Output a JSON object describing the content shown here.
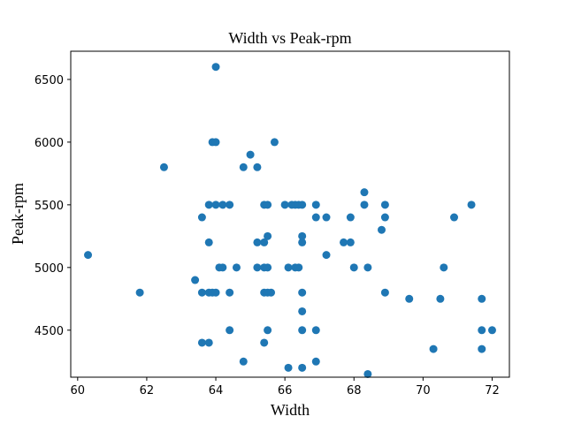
{
  "chart_data": {
    "type": "scatter",
    "title": "Width vs Peak-rpm",
    "xlabel": "Width",
    "ylabel": "Peak-rpm",
    "xlim": [
      59.8,
      72.5
    ],
    "ylim": [
      4125,
      6725
    ],
    "xticks": [
      60,
      62,
      64,
      66,
      68,
      70,
      72
    ],
    "yticks": [
      4500,
      5000,
      5500,
      6000,
      6500
    ],
    "grid": false,
    "marker_color": "#1f77b4",
    "points": [
      [
        60.3,
        5100
      ],
      [
        61.8,
        4800
      ],
      [
        62.5,
        5800
      ],
      [
        63.4,
        4900
      ],
      [
        63.6,
        5400
      ],
      [
        63.6,
        4800
      ],
      [
        63.6,
        4400
      ],
      [
        63.8,
        5500
      ],
      [
        63.8,
        5200
      ],
      [
        63.8,
        4800
      ],
      [
        63.8,
        4400
      ],
      [
        63.9,
        6000
      ],
      [
        63.9,
        4800
      ],
      [
        64.0,
        6000
      ],
      [
        64.0,
        6600
      ],
      [
        64.0,
        5500
      ],
      [
        64.0,
        4800
      ],
      [
        64.1,
        5000
      ],
      [
        64.2,
        5500
      ],
      [
        64.2,
        5000
      ],
      [
        64.4,
        5500
      ],
      [
        64.4,
        4800
      ],
      [
        64.4,
        4500
      ],
      [
        64.6,
        5000
      ],
      [
        64.8,
        5800
      ],
      [
        64.8,
        4250
      ],
      [
        65.0,
        5900
      ],
      [
        65.2,
        5800
      ],
      [
        65.2,
        5200
      ],
      [
        65.2,
        5000
      ],
      [
        65.4,
        5500
      ],
      [
        65.4,
        5200
      ],
      [
        65.4,
        5000
      ],
      [
        65.4,
        4800
      ],
      [
        65.4,
        4400
      ],
      [
        65.5,
        5500
      ],
      [
        65.5,
        5250
      ],
      [
        65.5,
        5000
      ],
      [
        65.5,
        4800
      ],
      [
        65.5,
        4500
      ],
      [
        65.6,
        4800
      ],
      [
        65.7,
        6000
      ],
      [
        66.0,
        5500
      ],
      [
        66.1,
        5000
      ],
      [
        66.1,
        4200
      ],
      [
        66.2,
        5500
      ],
      [
        66.3,
        5500
      ],
      [
        66.3,
        5000
      ],
      [
        66.4,
        5500
      ],
      [
        66.4,
        5000
      ],
      [
        66.5,
        5500
      ],
      [
        66.5,
        5250
      ],
      [
        66.5,
        5200
      ],
      [
        66.5,
        4800
      ],
      [
        66.5,
        4650
      ],
      [
        66.5,
        4500
      ],
      [
        66.5,
        4200
      ],
      [
        66.9,
        5500
      ],
      [
        66.9,
        5400
      ],
      [
        66.9,
        4500
      ],
      [
        66.9,
        4250
      ],
      [
        67.2,
        5400
      ],
      [
        67.2,
        5100
      ],
      [
        67.7,
        5200
      ],
      [
        67.9,
        5400
      ],
      [
        67.9,
        5200
      ],
      [
        68.0,
        5000
      ],
      [
        68.3,
        5600
      ],
      [
        68.3,
        5500
      ],
      [
        68.4,
        5000
      ],
      [
        68.4,
        4150
      ],
      [
        68.8,
        5300
      ],
      [
        68.9,
        5500
      ],
      [
        68.9,
        5400
      ],
      [
        68.9,
        4800
      ],
      [
        69.6,
        4750
      ],
      [
        70.3,
        4350
      ],
      [
        70.5,
        4750
      ],
      [
        70.6,
        5000
      ],
      [
        70.9,
        5400
      ],
      [
        71.4,
        5500
      ],
      [
        71.7,
        4750
      ],
      [
        71.7,
        4500
      ],
      [
        71.7,
        4350
      ],
      [
        72.0,
        4500
      ]
    ]
  }
}
